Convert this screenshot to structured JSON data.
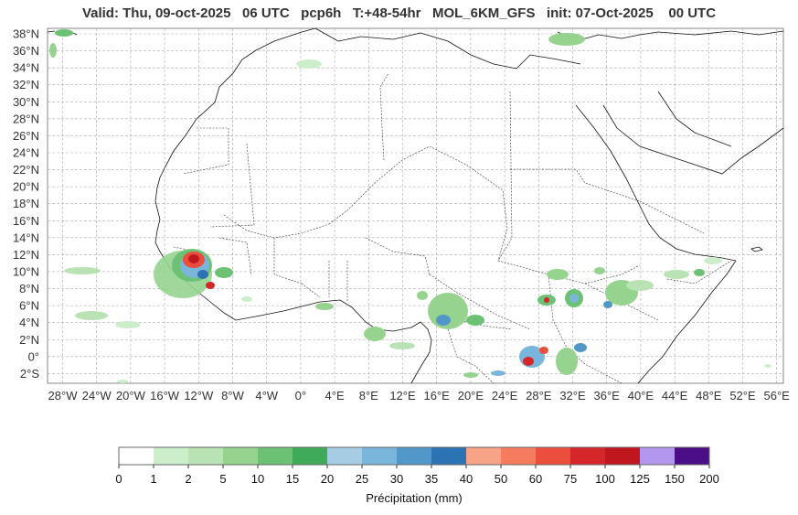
{
  "title": "Valid: Thu, 09-oct-2025   06 UTC   pcp6h   T:+48-54hr   MOL_6KM_GFS   init: 07-Oct-2025    00 UTC",
  "lat_labels": [
    "38°N",
    "36°N",
    "34°N",
    "32°N",
    "30°N",
    "28°N",
    "26°N",
    "24°N",
    "22°N",
    "20°N",
    "18°N",
    "16°N",
    "14°N",
    "12°N",
    "10°N",
    "8°N",
    "6°N",
    "4°N",
    "2°N",
    "0°",
    "2°S"
  ],
  "lon_labels": [
    "28°W",
    "24°W",
    "20°W",
    "16°W",
    "12°W",
    "8°W",
    "4°W",
    "0°",
    "4°E",
    "8°E",
    "12°E",
    "16°E",
    "20°E",
    "24°E",
    "28°E",
    "32°E",
    "36°E",
    "40°E",
    "44°E",
    "48°E",
    "52°E",
    "56°E"
  ],
  "colorbar": {
    "label": "Précipitation (mm)",
    "ticks": [
      "0",
      "1",
      "2",
      "5",
      "10",
      "15",
      "20",
      "25",
      "30",
      "35",
      "40",
      "50",
      "60",
      "75",
      "100",
      "125",
      "150",
      "200"
    ],
    "colors": [
      "#ffffff",
      "#cdeecb",
      "#b9e3b4",
      "#96d38f",
      "#6cc174",
      "#3faa5a",
      "#a6cde4",
      "#7ab5dc",
      "#5198c8",
      "#2b73b3",
      "#f7a388",
      "#f57c5f",
      "#ec4e3d",
      "#d5272a",
      "#c0161d",
      "#b397ef",
      "#4b0e86"
    ]
  }
}
